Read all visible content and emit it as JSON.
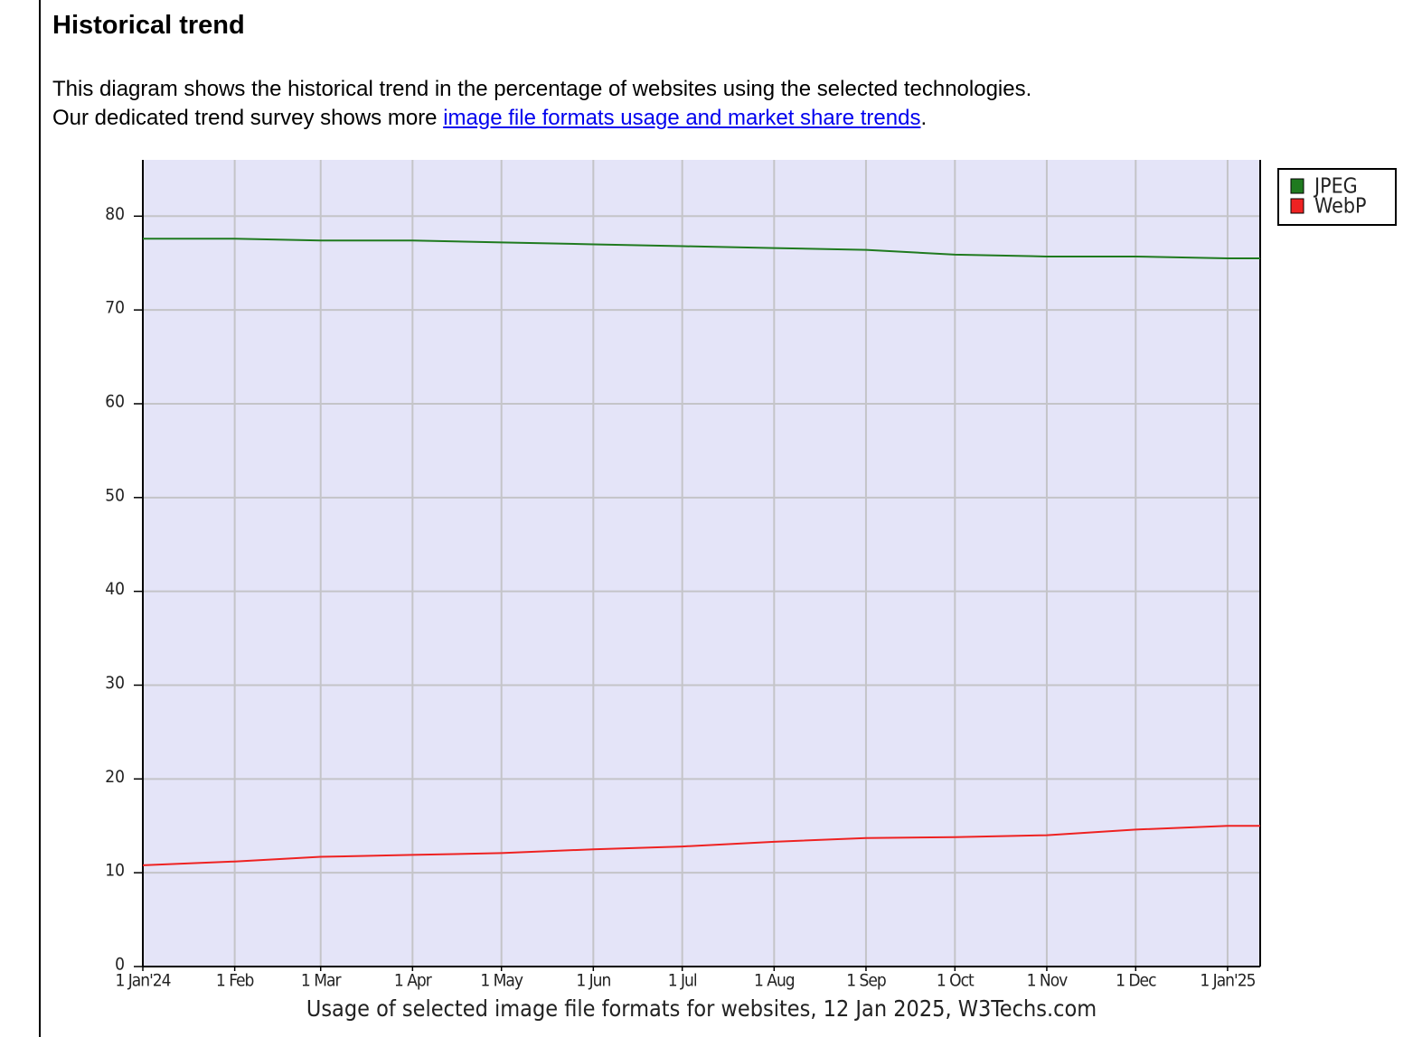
{
  "page": {
    "title": "Historical trend",
    "line1": "This diagram shows the historical trend in the percentage of websites using the selected technologies.",
    "line2_prefix": "Our dedicated trend survey shows more",
    "link": "image file formats usage and market share trends",
    "line2_suffix": "."
  },
  "chart_data": {
    "type": "line",
    "caption": "Usage of selected image file formats for websites, 12 Jan 2025, W3Techs.com",
    "x": [
      "2024-01-01",
      "2024-02-01",
      "2024-03-01",
      "2024-04-01",
      "2024-05-01",
      "2024-06-01",
      "2024-07-01",
      "2024-08-01",
      "2024-09-01",
      "2024-10-01",
      "2024-11-01",
      "2024-12-01",
      "2025-01-01",
      "2025-01-12"
    ],
    "series": [
      {
        "name": "JPEG",
        "color": "#1f7a1f",
        "values": [
          77.6,
          77.6,
          77.4,
          77.4,
          77.2,
          77.0,
          76.8,
          76.6,
          76.4,
          75.9,
          75.7,
          75.7,
          75.5,
          75.5
        ]
      },
      {
        "name": "WebP",
        "color": "#ee2222",
        "values": [
          10.8,
          11.2,
          11.7,
          11.9,
          12.1,
          12.5,
          12.8,
          13.3,
          13.7,
          13.8,
          14.0,
          14.6,
          15.0,
          15.0
        ]
      }
    ],
    "xlim": [
      "2024-01-01",
      "2025-01-12"
    ],
    "xticks": [
      {
        "value": "2024-01-01",
        "label": "1 Jan'24"
      },
      {
        "value": "2024-02-01",
        "label": "1 Feb"
      },
      {
        "value": "2024-03-01",
        "label": "1 Mar"
      },
      {
        "value": "2024-04-01",
        "label": "1 Apr"
      },
      {
        "value": "2024-05-01",
        "label": "1 May"
      },
      {
        "value": "2024-06-01",
        "label": "1 Jun"
      },
      {
        "value": "2024-07-01",
        "label": "1 Jul"
      },
      {
        "value": "2024-08-01",
        "label": "1 Aug"
      },
      {
        "value": "2024-09-01",
        "label": "1 Sep"
      },
      {
        "value": "2024-10-01",
        "label": "1 Oct"
      },
      {
        "value": "2024-11-01",
        "label": "1 Nov"
      },
      {
        "value": "2024-12-01",
        "label": "1 Dec"
      },
      {
        "value": "2025-01-01",
        "label": "1 Jan'25"
      }
    ],
    "ylim": [
      0,
      86
    ],
    "yticks": [
      0,
      10,
      20,
      30,
      40,
      50,
      60,
      70,
      80
    ],
    "grid": true,
    "legend": "top-right"
  }
}
